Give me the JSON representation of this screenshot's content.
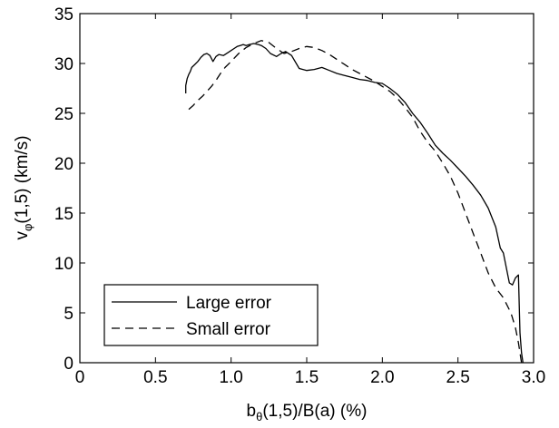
{
  "chart_data": {
    "type": "line",
    "xlabel": {
      "pre": "b",
      "sub": "θ",
      "post": "(1,5)/B(a)   (%)"
    },
    "ylabel": {
      "pre": "v",
      "sub": "φ",
      "post": "(1,5)   (km/s)"
    },
    "xlim": [
      0,
      3.0
    ],
    "ylim": [
      0,
      35
    ],
    "x_ticks": [
      "0",
      "0.5",
      "1.0",
      "1.5",
      "2.0",
      "2.5",
      "3.0"
    ],
    "y_ticks": [
      "0",
      "5",
      "10",
      "15",
      "20",
      "25",
      "30",
      "35"
    ],
    "grid": false,
    "legend": "bottom-left",
    "series": [
      {
        "name": "Large error",
        "style": "solid",
        "color": "#000000",
        "x": [
          0.7,
          0.7,
          0.71,
          0.72,
          0.73,
          0.74,
          0.76,
          0.78,
          0.8,
          0.82,
          0.84,
          0.86,
          0.88,
          0.9,
          0.92,
          0.95,
          0.98,
          1.0,
          1.02,
          1.04,
          1.06,
          1.08,
          1.1,
          1.12,
          1.15,
          1.18,
          1.2,
          1.23,
          1.26,
          1.3,
          1.33,
          1.36,
          1.4,
          1.45,
          1.5,
          1.55,
          1.6,
          1.65,
          1.7,
          1.75,
          1.8,
          1.85,
          1.9,
          1.95,
          2.0,
          2.05,
          2.1,
          2.15,
          2.2,
          2.25,
          2.3,
          2.35,
          2.4,
          2.45,
          2.5,
          2.55,
          2.6,
          2.65,
          2.7,
          2.75,
          2.78,
          2.8,
          2.82,
          2.84,
          2.86,
          2.88,
          2.9,
          2.91,
          2.92,
          2.93
        ],
        "y": [
          27.0,
          27.8,
          28.5,
          28.9,
          29.2,
          29.6,
          29.9,
          30.2,
          30.6,
          30.9,
          31.0,
          30.8,
          30.2,
          30.7,
          30.9,
          30.8,
          31.1,
          31.3,
          31.5,
          31.7,
          31.8,
          31.9,
          31.8,
          31.9,
          32.0,
          31.9,
          31.8,
          31.5,
          31.0,
          30.7,
          31.0,
          31.2,
          30.8,
          29.5,
          29.3,
          29.4,
          29.6,
          29.3,
          29.0,
          28.8,
          28.6,
          28.4,
          28.3,
          28.1,
          28.0,
          27.5,
          26.9,
          26.1,
          25.0,
          24.1,
          23.0,
          21.8,
          21.0,
          20.3,
          19.5,
          18.7,
          17.8,
          16.8,
          15.5,
          13.6,
          11.5,
          11.0,
          9.5,
          8.0,
          7.8,
          8.5,
          8.8,
          3.0,
          1.0,
          0.0
        ]
      },
      {
        "name": "Small error",
        "style": "dashed",
        "color": "#000000",
        "x": [
          0.72,
          0.75,
          0.78,
          0.81,
          0.84,
          0.87,
          0.9,
          0.93,
          0.96,
          1.0,
          1.05,
          1.1,
          1.15,
          1.2,
          1.25,
          1.3,
          1.35,
          1.4,
          1.45,
          1.5,
          1.55,
          1.6,
          1.65,
          1.7,
          1.75,
          1.8,
          1.85,
          1.9,
          1.95,
          2.0,
          2.05,
          2.1,
          2.15,
          2.2,
          2.25,
          2.3,
          2.35,
          2.4,
          2.45,
          2.5,
          2.55,
          2.6,
          2.65,
          2.7,
          2.75,
          2.8,
          2.85,
          2.88,
          2.9,
          2.92
        ],
        "y": [
          25.4,
          25.8,
          26.3,
          26.7,
          27.2,
          27.7,
          28.3,
          29.0,
          29.6,
          30.2,
          31.0,
          31.6,
          32.0,
          32.3,
          32.1,
          31.5,
          31.0,
          31.2,
          31.5,
          31.7,
          31.6,
          31.3,
          30.9,
          30.4,
          29.9,
          29.4,
          29.0,
          28.6,
          28.2,
          27.7,
          27.2,
          26.5,
          25.6,
          24.6,
          23.2,
          22.1,
          21.2,
          20.0,
          18.7,
          17.0,
          15.0,
          13.0,
          11.0,
          9.0,
          7.5,
          6.5,
          5.0,
          3.5,
          2.0,
          0.0
        ]
      }
    ]
  }
}
